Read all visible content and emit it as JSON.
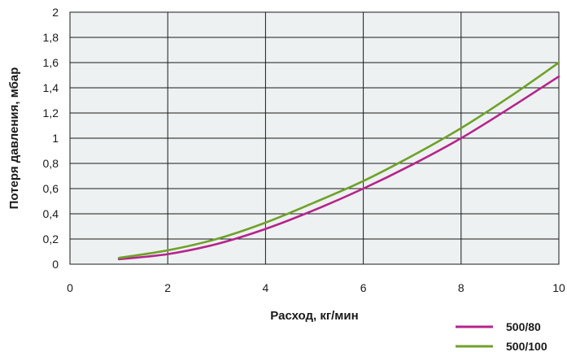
{
  "chart_data": {
    "type": "line",
    "title": "",
    "xlabel": "Расход, кг/мин",
    "ylabel": "Потеря давления, мбар",
    "xlim": [
      0,
      10
    ],
    "ylim": [
      0,
      2
    ],
    "x_ticks": [
      "0",
      "2",
      "4",
      "6",
      "8",
      "10"
    ],
    "y_ticks": [
      "0",
      "0,2",
      "0,4",
      "0,6",
      "0,8",
      "1",
      "1,2",
      "1,4",
      "1,6",
      "1,8",
      "2"
    ],
    "grid": true,
    "legend_position": "bottom-right",
    "background_color": "#eef1f1",
    "series": [
      {
        "name": "500/80",
        "color": "#b5248c",
        "x": [
          1,
          2,
          3,
          4,
          5,
          6,
          7,
          8,
          9,
          10
        ],
        "y": [
          0.04,
          0.08,
          0.16,
          0.28,
          0.43,
          0.6,
          0.79,
          1.0,
          1.24,
          1.49
        ]
      },
      {
        "name": "500/100",
        "color": "#6fa22b",
        "x": [
          1,
          2,
          3,
          4,
          5,
          6,
          7,
          8,
          9,
          10
        ],
        "y": [
          0.05,
          0.11,
          0.2,
          0.33,
          0.49,
          0.66,
          0.86,
          1.08,
          1.33,
          1.6
        ]
      }
    ]
  }
}
